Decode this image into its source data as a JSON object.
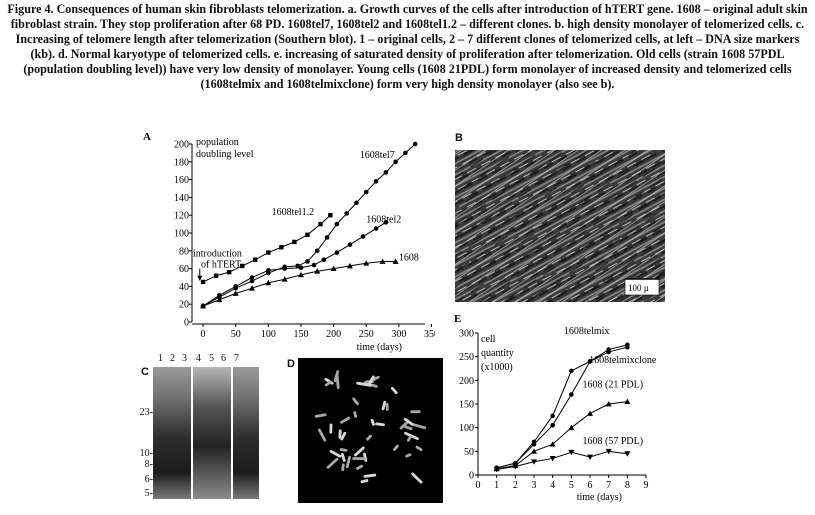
{
  "caption": "Figure 4. Consequences of human skin fibroblasts telomerization. a. Growth curves of the cells after introduction of hTERT gene. 1608 – original adult skin fibroblast strain. They stop proliferation after 68 PD. 1608tel7, 1608tel2 and 1608tel1.2 – different clones. b. high density monolayer of telomerized cells. c. Increasing of telomere length after telomerization (Southern blot). 1 – original cells, 2 – 7 different clones of telomerized cells, at left – DNA size markers (kb). d. Normal karyotype of telomerized cells. e. increasing of saturated density of proliferation after telomerization. Old cells (strain 1608 57PDL (population doubling level)) have very low density of monolayer. Young cells (1608 21PDL) form monolayer of increased density and telomerized cells (1608telmix and 1608telmixclone) form very high density monolayer (also see b).",
  "panels": {
    "a": "A",
    "b": "B",
    "c": "C",
    "d": "D",
    "e": "E"
  },
  "panel_b": {
    "scale_bar": "100 µ"
  },
  "panel_c": {
    "lanes": [
      "1",
      "2",
      "3",
      "4",
      "5",
      "6",
      "7"
    ],
    "markers": [
      "23-",
      "10-",
      "8-",
      "6-",
      "5-"
    ]
  },
  "chart_data": [
    {
      "type": "line",
      "panel": "A",
      "ylabel_line1": "population",
      "ylabel_line2": "doubling level",
      "xlabel": "time (days)",
      "xlim": [
        -20,
        340
      ],
      "ylim": [
        0,
        200
      ],
      "xticks": [
        0,
        50,
        100,
        150,
        200,
        250,
        300,
        350
      ],
      "yticks": [
        0,
        20,
        40,
        60,
        80,
        100,
        120,
        140,
        160,
        180,
        200
      ],
      "annotation_line1": "introduction",
      "annotation_line2": "of hTERT",
      "series": [
        {
          "name": "1608tel7",
          "marker": "circle",
          "x": [
            0,
            25,
            50,
            75,
            100,
            125,
            145,
            160,
            175,
            190,
            205,
            220,
            235,
            250,
            265,
            280,
            295,
            310,
            325
          ],
          "y": [
            18,
            28,
            38,
            46,
            55,
            62,
            63,
            68,
            80,
            95,
            110,
            122,
            134,
            146,
            158,
            168,
            180,
            190,
            200
          ]
        },
        {
          "name": "1608tel2",
          "marker": "circle",
          "x": [
            0,
            25,
            50,
            75,
            100,
            125,
            150,
            170,
            185,
            205,
            225,
            245,
            265,
            280
          ],
          "y": [
            18,
            30,
            40,
            50,
            58,
            60,
            61,
            64,
            70,
            78,
            87,
            96,
            105,
            112
          ]
        },
        {
          "name": "1608tel1.2",
          "marker": "square",
          "x": [
            0,
            20,
            40,
            60,
            80,
            100,
            120,
            140,
            160,
            180,
            195
          ],
          "y": [
            45,
            52,
            56,
            63,
            70,
            78,
            84,
            90,
            98,
            110,
            120
          ]
        },
        {
          "name": "1608",
          "marker": "triangle",
          "x": [
            0,
            25,
            50,
            75,
            100,
            125,
            150,
            175,
            200,
            225,
            250,
            275,
            295
          ],
          "y": [
            18,
            25,
            32,
            38,
            44,
            48,
            53,
            57,
            60,
            63,
            66,
            68,
            68
          ]
        }
      ]
    },
    {
      "type": "line",
      "panel": "E",
      "ylabel_line1": "cell",
      "ylabel_line2": "quantity",
      "ylabel_line3": "(x1000)",
      "xlabel": "time (days)",
      "xlim": [
        0,
        9
      ],
      "ylim": [
        0,
        300
      ],
      "xticks": [
        0,
        1,
        2,
        3,
        4,
        5,
        6,
        7,
        8,
        9
      ],
      "yticks": [
        0,
        50,
        100,
        150,
        200,
        250,
        300
      ],
      "series": [
        {
          "name": "1608telmix",
          "marker": "circle",
          "x": [
            1,
            2,
            3,
            4,
            5,
            6,
            7,
            8
          ],
          "y": [
            15,
            25,
            70,
            125,
            220,
            240,
            260,
            270
          ]
        },
        {
          "name": "1608telmixclone",
          "marker": "circle",
          "x": [
            1,
            2,
            3,
            4,
            5,
            6,
            7,
            8
          ],
          "y": [
            15,
            25,
            65,
            105,
            170,
            240,
            265,
            275
          ]
        },
        {
          "name": "1608 (21 PDL)",
          "marker": "triangle",
          "x": [
            1,
            2,
            3,
            4,
            5,
            6,
            7,
            8
          ],
          "y": [
            13,
            20,
            50,
            65,
            100,
            130,
            150,
            155
          ]
        },
        {
          "name": "1608 (57 PDL)",
          "marker": "triangle-down",
          "x": [
            1,
            2,
            3,
            4,
            5,
            6,
            7,
            8
          ],
          "y": [
            12,
            18,
            28,
            35,
            48,
            38,
            50,
            45
          ]
        }
      ]
    }
  ]
}
